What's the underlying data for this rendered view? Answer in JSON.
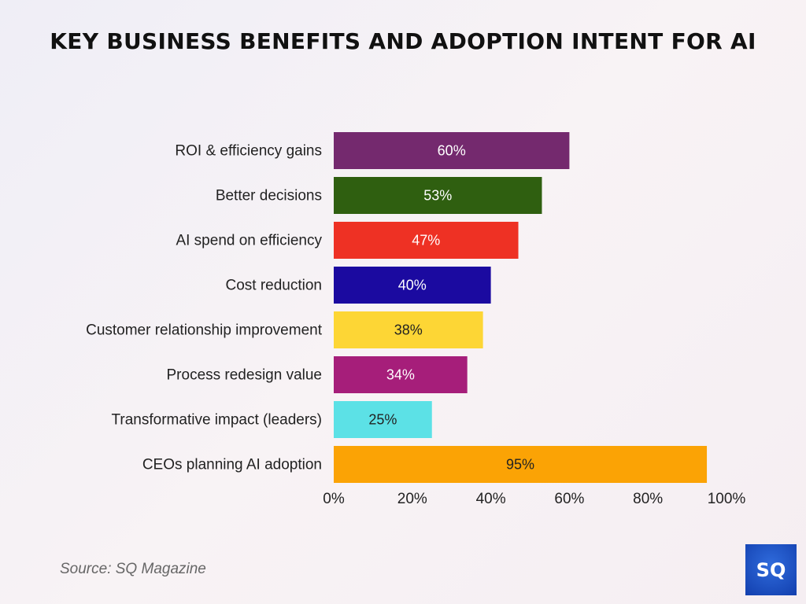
{
  "chart_data": {
    "type": "bar",
    "orientation": "horizontal",
    "title": "KEY BUSINESS BENEFITS AND ADOPTION INTENT FOR AI",
    "categories": [
      "ROI & efficiency gains",
      "Better decisions",
      "AI spend on efficiency",
      "Cost reduction",
      "Customer relationship improvement",
      "Process redesign value",
      "Transformative impact (leaders)",
      "CEOs planning AI adoption"
    ],
    "values": [
      60,
      53,
      47,
      40,
      38,
      34,
      25,
      95
    ],
    "data_labels": [
      "60%",
      "53%",
      "47%",
      "40%",
      "38%",
      "34%",
      "25%",
      "95%"
    ],
    "colors": [
      "#74296e",
      "#2f5f10",
      "#ee3124",
      "#1b0aa0",
      "#fdd635",
      "#a61e7a",
      "#5ce1e6",
      "#fba305"
    ],
    "label_colors": [
      "#ffffff",
      "#ffffff",
      "#ffffff",
      "#ffffff",
      "#222222",
      "#ffffff",
      "#222222",
      "#222222"
    ],
    "xlim": [
      0,
      100
    ],
    "xticks": [
      "0%",
      "20%",
      "40%",
      "60%",
      "80%",
      "100%"
    ],
    "xlabel": "",
    "ylabel": "",
    "grid": false,
    "legend": "none"
  },
  "source": "Source: SQ Magazine",
  "logo_text": "SQ"
}
